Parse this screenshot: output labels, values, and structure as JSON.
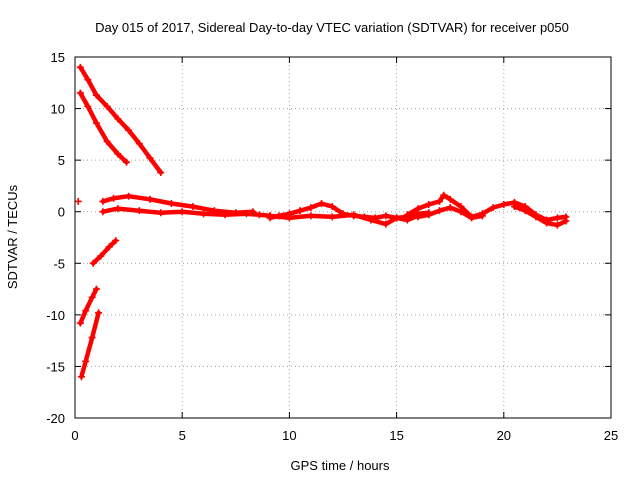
{
  "chart_data": {
    "type": "scatter",
    "title": "Day 015 of 2017, Sidereal Day-to-day VTEC variation (SDTVAR) for receiver p050",
    "xlabel": "GPS time / hours",
    "ylabel": "SDTVAR / TECUs",
    "xlim": [
      0,
      25
    ],
    "ylim": [
      -20,
      15
    ],
    "xticks": [
      0,
      5,
      10,
      15,
      20,
      25
    ],
    "yticks": [
      -20,
      -15,
      -10,
      -5,
      0,
      5,
      10,
      15
    ],
    "grid": true,
    "color": "#ff0000",
    "series": [
      {
        "x": [
          0.25,
          0.6,
          1.0,
          1.5,
          2.0,
          2.5,
          3.0,
          3.5,
          4.0
        ],
        "y": [
          14.0,
          12.8,
          11.3,
          10.2,
          9.0,
          7.9,
          6.6,
          5.2,
          3.8
        ]
      },
      {
        "x": [
          0.25,
          0.6,
          1.0,
          1.5,
          2.0,
          2.4
        ],
        "y": [
          11.5,
          10.2,
          8.6,
          6.8,
          5.6,
          4.8
        ]
      },
      {
        "x": [
          0.15
        ],
        "y": [
          1.0
        ]
      },
      {
        "x": [
          1.3,
          1.8,
          2.5,
          3.5,
          4.5,
          5.5,
          6.5,
          7.5,
          8.3
        ],
        "y": [
          1.0,
          1.3,
          1.5,
          1.2,
          0.8,
          0.5,
          0.1,
          -0.1,
          0.0
        ]
      },
      {
        "x": [
          1.3,
          2.0,
          3.0,
          4.0,
          5.0,
          6.0,
          7.0,
          8.0,
          8.6,
          9.1
        ],
        "y": [
          0.0,
          0.3,
          0.1,
          -0.1,
          0.0,
          -0.2,
          -0.3,
          -0.2,
          -0.3,
          -0.4
        ]
      },
      {
        "x": [
          9.1,
          9.5,
          10.0,
          10.5,
          11.0,
          11.5,
          12.0,
          12.5,
          13.0,
          13.5,
          14.0,
          14.5,
          15.0,
          15.5,
          16.0,
          16.5
        ],
        "y": [
          -0.6,
          -0.4,
          -0.2,
          0.1,
          0.4,
          0.8,
          0.5,
          -0.2,
          -0.4,
          -0.5,
          -0.6,
          -0.4,
          -0.6,
          -0.5,
          -0.2,
          -0.1
        ]
      },
      {
        "x": [
          9.1,
          10.0,
          11.0,
          12.0,
          13.0,
          13.8,
          14.5,
          15.0,
          15.5,
          16.0
        ],
        "y": [
          -0.4,
          -0.6,
          -0.4,
          -0.5,
          -0.3,
          -0.8,
          -1.2,
          -0.6,
          -0.8,
          -0.4
        ]
      },
      {
        "x": [
          15.5,
          16.0,
          16.5,
          17.0,
          17.2,
          17.5,
          18.0,
          18.5,
          19.0,
          19.5,
          20.0,
          20.5,
          21.0,
          21.5,
          22.0,
          22.5,
          22.9
        ],
        "y": [
          -0.3,
          0.3,
          0.7,
          1.0,
          1.6,
          1.2,
          0.5,
          -0.5,
          -0.2,
          0.4,
          0.7,
          0.9,
          0.5,
          -0.3,
          -0.8,
          -0.6,
          -0.5
        ]
      },
      {
        "x": [
          16.0,
          16.5,
          17.0,
          17.5,
          18.0,
          18.5,
          19.0
        ],
        "y": [
          -0.5,
          -0.3,
          0.1,
          0.4,
          0.0,
          -0.6,
          -0.4
        ]
      },
      {
        "x": [
          20.5,
          21.0,
          21.5,
          22.0,
          22.5,
          22.9
        ],
        "y": [
          0.5,
          0.1,
          -0.5,
          -1.1,
          -1.3,
          -0.9
        ]
      },
      {
        "x": [
          0.85,
          1.2,
          1.6,
          1.9
        ],
        "y": [
          -5.0,
          -4.3,
          -3.4,
          -2.8
        ]
      },
      {
        "x": [
          0.25,
          0.5,
          0.8,
          1.0
        ],
        "y": [
          -10.8,
          -9.6,
          -8.3,
          -7.5
        ]
      },
      {
        "x": [
          0.3,
          0.5,
          0.8,
          1.1
        ],
        "y": [
          -16.0,
          -14.5,
          -12.2,
          -9.8
        ]
      }
    ]
  }
}
